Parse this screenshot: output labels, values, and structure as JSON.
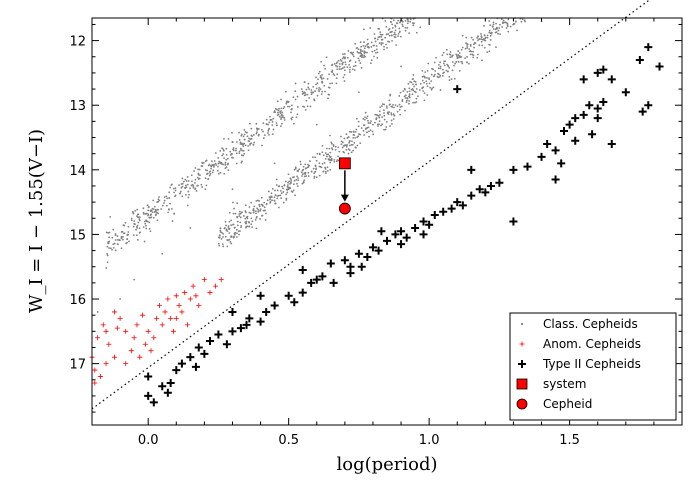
{
  "chart_data": {
    "type": "scatter",
    "title": "",
    "xlabel": "log(period)",
    "ylabel": "W_I = I − 1.55(V−I)",
    "xlim": [
      -0.2,
      1.9
    ],
    "ylim": [
      17.95,
      11.65
    ],
    "y_inverted": true,
    "xticks": [
      "0.0",
      "0.5",
      "1.0",
      "1.5"
    ],
    "xtick_values": [
      0.0,
      0.5,
      1.0,
      1.5
    ],
    "yticks": [
      "12",
      "13",
      "14",
      "15",
      "16",
      "17"
    ],
    "ytick_values": [
      12,
      13,
      14,
      15,
      16,
      17
    ],
    "legend_position": "bottom-right",
    "legend": [
      {
        "key": "classical",
        "label": "Class. Cepheids"
      },
      {
        "key": "anomalous",
        "label": "Anom. Cepheids"
      },
      {
        "key": "type2",
        "label": "Type II Cepheids"
      },
      {
        "key": "system",
        "label": "system"
      },
      {
        "key": "cepheid",
        "label": "Cepheid"
      }
    ],
    "series": [
      {
        "name": "Class. Cepheids",
        "marker": "dot",
        "color": "#808080",
        "bands": [
          {
            "x": [
              -0.15,
              1.15
            ],
            "y_at_x0": 14.7,
            "slope": -3.3,
            "scatter": 0.12,
            "count": 900
          },
          {
            "x": [
              0.25,
              1.8
            ],
            "y_at_x0": 15.9,
            "slope": -3.3,
            "scatter": 0.12,
            "count": 1100
          }
        ],
        "points": [
          [
            -0.18,
            16.2
          ],
          [
            -0.1,
            16.0
          ],
          [
            -0.05,
            15.7
          ],
          [
            0.05,
            15.3
          ],
          [
            0.15,
            14.9
          ],
          [
            0.3,
            14.3
          ],
          [
            0.45,
            13.9
          ],
          [
            0.6,
            13.3
          ],
          [
            0.75,
            12.8
          ],
          [
            0.9,
            12.4
          ],
          [
            0.35,
            14.8
          ],
          [
            0.5,
            14.3
          ],
          [
            0.65,
            13.8
          ],
          [
            0.8,
            13.3
          ],
          [
            1.0,
            12.6
          ],
          [
            1.2,
            12.0
          ],
          [
            1.4,
            11.7
          ]
        ]
      },
      {
        "name": "Anom. Cepheids",
        "marker": "plus",
        "color": "#ff0000",
        "points": [
          [
            -0.19,
            17.3
          ],
          [
            -0.17,
            17.2
          ],
          [
            -0.15,
            17.0
          ],
          [
            -0.12,
            16.9
          ],
          [
            -0.14,
            16.7
          ],
          [
            -0.18,
            16.6
          ],
          [
            -0.16,
            16.4
          ],
          [
            -0.1,
            16.3
          ],
          [
            -0.12,
            16.2
          ],
          [
            -0.08,
            16.5
          ],
          [
            -0.06,
            16.8
          ],
          [
            -0.05,
            16.6
          ],
          [
            -0.04,
            16.4
          ],
          [
            -0.03,
            16.9
          ],
          [
            -0.01,
            16.7
          ],
          [
            0.0,
            16.5
          ],
          [
            0.02,
            16.6
          ],
          [
            0.03,
            16.3
          ],
          [
            0.05,
            16.4
          ],
          [
            0.06,
            16.2
          ],
          [
            0.07,
            16.0
          ],
          [
            0.09,
            16.5
          ],
          [
            0.1,
            16.3
          ],
          [
            0.11,
            16.1
          ],
          [
            0.12,
            16.2
          ],
          [
            0.13,
            15.9
          ],
          [
            0.15,
            16.0
          ],
          [
            0.16,
            15.8
          ],
          [
            0.18,
            16.1
          ],
          [
            0.2,
            15.7
          ],
          [
            0.22,
            15.9
          ],
          [
            0.24,
            15.8
          ],
          [
            0.26,
            15.7
          ],
          [
            -0.19,
            17.1
          ],
          [
            -0.15,
            16.5
          ],
          [
            -0.2,
            16.9
          ],
          [
            -0.08,
            17.0
          ],
          [
            0.01,
            16.8
          ],
          [
            0.04,
            16.1
          ],
          [
            0.08,
            16.3
          ],
          [
            0.14,
            16.4
          ],
          [
            0.17,
            15.95
          ],
          [
            -0.11,
            16.45
          ],
          [
            -0.02,
            16.25
          ],
          [
            0.1,
            15.95
          ]
        ]
      },
      {
        "name": "Type II Cepheids",
        "marker": "bigplus",
        "color": "#000000",
        "points": [
          [
            0.0,
            17.5
          ],
          [
            0.02,
            17.6
          ],
          [
            0.0,
            17.2
          ],
          [
            0.05,
            17.35
          ],
          [
            0.08,
            17.3
          ],
          [
            0.1,
            17.1
          ],
          [
            0.12,
            17.0
          ],
          [
            0.15,
            16.9
          ],
          [
            0.18,
            16.75
          ],
          [
            0.2,
            16.85
          ],
          [
            0.22,
            16.65
          ],
          [
            0.25,
            16.55
          ],
          [
            0.28,
            16.7
          ],
          [
            0.3,
            16.5
          ],
          [
            0.33,
            16.45
          ],
          [
            0.36,
            16.3
          ],
          [
            0.3,
            16.2
          ],
          [
            0.4,
            16.35
          ],
          [
            0.42,
            16.2
          ],
          [
            0.45,
            16.1
          ],
          [
            0.5,
            15.95
          ],
          [
            0.52,
            16.05
          ],
          [
            0.55,
            15.9
          ],
          [
            0.58,
            15.75
          ],
          [
            0.6,
            15.7
          ],
          [
            0.62,
            15.65
          ],
          [
            0.65,
            15.45
          ],
          [
            0.7,
            15.4
          ],
          [
            0.72,
            15.5
          ],
          [
            0.75,
            15.3
          ],
          [
            0.78,
            15.35
          ],
          [
            0.8,
            15.2
          ],
          [
            0.82,
            15.25
          ],
          [
            0.85,
            15.1
          ],
          [
            0.88,
            15.0
          ],
          [
            0.9,
            14.95
          ],
          [
            0.92,
            15.05
          ],
          [
            0.95,
            14.9
          ],
          [
            0.98,
            14.8
          ],
          [
            1.0,
            14.85
          ],
          [
            1.02,
            14.7
          ],
          [
            1.05,
            14.65
          ],
          [
            1.08,
            14.6
          ],
          [
            1.1,
            14.5
          ],
          [
            1.12,
            14.55
          ],
          [
            1.15,
            14.4
          ],
          [
            1.18,
            14.3
          ],
          [
            1.2,
            14.35
          ],
          [
            1.22,
            14.25
          ],
          [
            1.25,
            14.2
          ],
          [
            1.3,
            14.0
          ],
          [
            1.35,
            13.95
          ],
          [
            1.4,
            13.8
          ],
          [
            1.42,
            13.6
          ],
          [
            1.45,
            13.7
          ],
          [
            1.48,
            13.4
          ],
          [
            1.5,
            13.3
          ],
          [
            1.52,
            13.2
          ],
          [
            1.55,
            13.15
          ],
          [
            1.57,
            13.0
          ],
          [
            1.6,
            13.05
          ],
          [
            1.62,
            12.95
          ],
          [
            1.55,
            12.6
          ],
          [
            1.6,
            12.5
          ],
          [
            1.62,
            12.45
          ],
          [
            1.65,
            12.6
          ],
          [
            1.7,
            12.8
          ],
          [
            1.75,
            12.3
          ],
          [
            1.78,
            12.1
          ],
          [
            1.82,
            12.4
          ],
          [
            1.78,
            13.0
          ],
          [
            1.76,
            13.1
          ],
          [
            1.65,
            13.6
          ],
          [
            1.15,
            14.0
          ],
          [
            1.1,
            12.75
          ],
          [
            1.3,
            14.8
          ],
          [
            1.45,
            14.15
          ],
          [
            0.98,
            15.0
          ],
          [
            0.9,
            15.15
          ],
          [
            0.72,
            15.6
          ],
          [
            0.55,
            15.55
          ],
          [
            0.4,
            15.95
          ],
          [
            0.35,
            16.4
          ],
          [
            0.17,
            17.05
          ],
          [
            0.07,
            17.45
          ],
          [
            1.52,
            13.55
          ],
          [
            1.58,
            13.45
          ],
          [
            1.6,
            13.2
          ],
          [
            1.47,
            13.9
          ],
          [
            0.83,
            14.95
          ],
          [
            0.76,
            15.5
          ],
          [
            0.66,
            15.75
          ]
        ]
      },
      {
        "name": "system",
        "marker": "square",
        "color": "#ff0000",
        "points": [
          [
            0.7,
            13.9
          ]
        ]
      },
      {
        "name": "Cepheid",
        "marker": "circle",
        "color": "#ff0000",
        "points": [
          [
            0.7,
            14.6
          ]
        ]
      }
    ],
    "annotations": [
      {
        "type": "arrow",
        "from": [
          0.7,
          13.9
        ],
        "to": [
          0.7,
          14.6
        ]
      },
      {
        "type": "dotted-line",
        "from": [
          -0.2,
          17.7
        ],
        "to": [
          1.9,
          11.0
        ]
      }
    ]
  },
  "colors": {
    "classical": "#808080",
    "anomalous": "#ff0000",
    "type2": "#000000",
    "highlight": "#ff0000"
  }
}
